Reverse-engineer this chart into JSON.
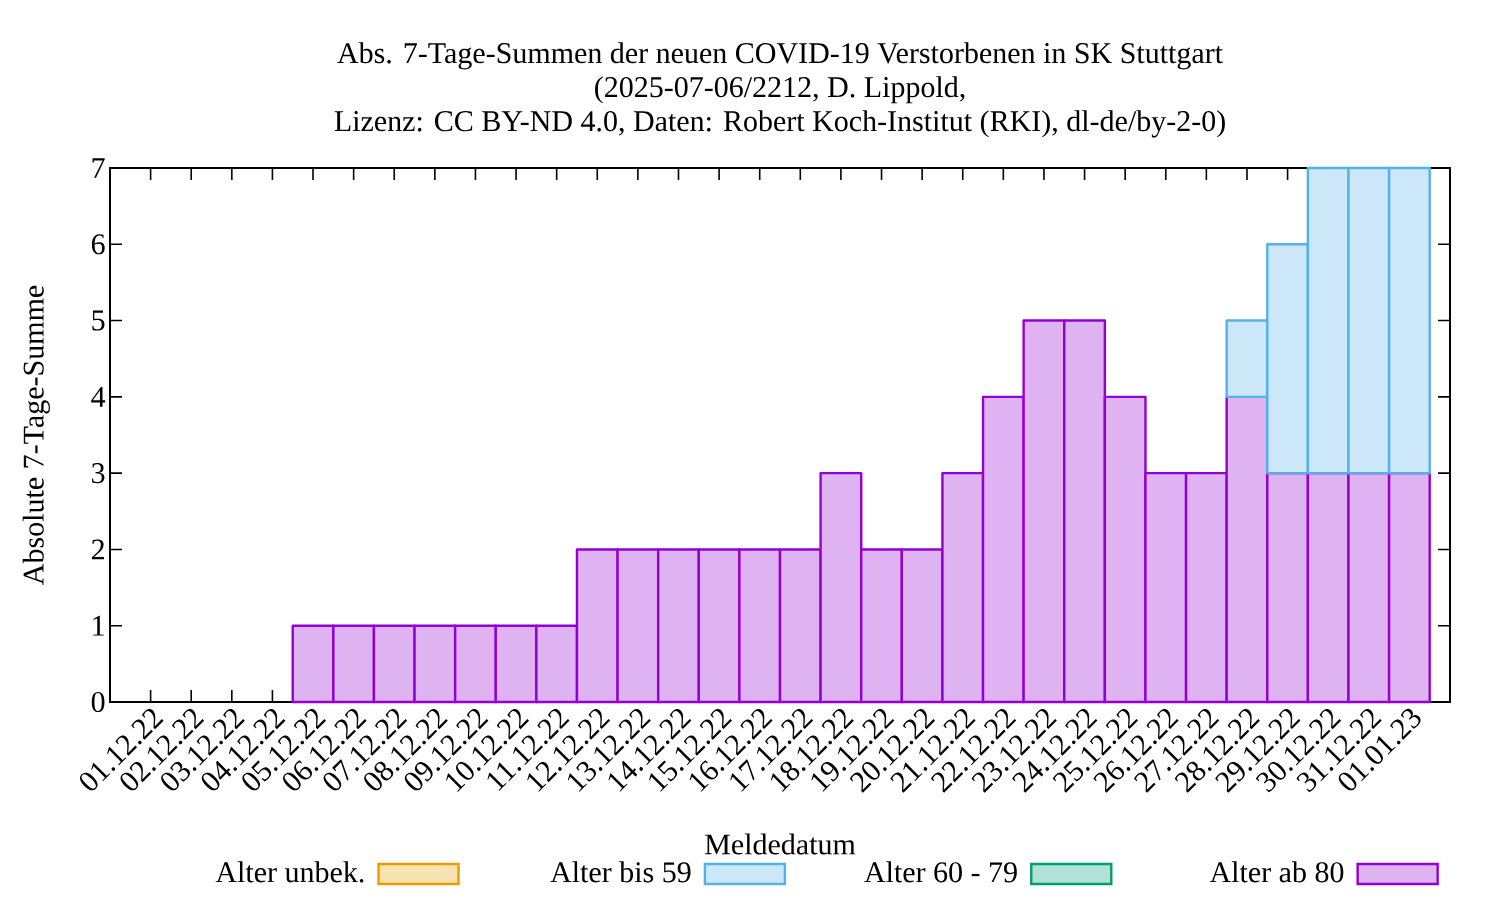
{
  "chart_data": {
    "type": "bar",
    "stacked": true,
    "title": "Abs. 7-Tage-Summen der neuen COVID-19 Verstorbenen in SK Stuttgart",
    "subtitle": "(2025-07-06/2212, D. Lippold,",
    "annotations": [
      "Lizenz: CC BY-ND 4.0, Daten: Robert Koch-Institut (RKI), dl-de/by-2-0)"
    ],
    "xlabel": "Meldedatum",
    "ylabel": "Absolute 7-Tage-Summe",
    "categories": [
      "01.12.22",
      "02.12.22",
      "03.12.22",
      "04.12.22",
      "05.12.22",
      "06.12.22",
      "07.12.22",
      "08.12.22",
      "09.12.22",
      "10.12.22",
      "11.12.22",
      "12.12.22",
      "13.12.22",
      "14.12.22",
      "15.12.22",
      "16.12.22",
      "17.12.22",
      "18.12.22",
      "19.12.22",
      "20.12.22",
      "21.12.22",
      "22.12.22",
      "23.12.22",
      "24.12.22",
      "25.12.22",
      "26.12.22",
      "27.12.22",
      "28.12.22",
      "29.12.22",
      "30.12.22",
      "31.12.22",
      "01.01.23"
    ],
    "series": [
      {
        "name": "Alter ab 80",
        "color": "#dfb2f2",
        "values": [
          0,
          0,
          0,
          0,
          1,
          1,
          1,
          1,
          1,
          1,
          1,
          2,
          2,
          2,
          2,
          2,
          2,
          3,
          2,
          2,
          3,
          4,
          5,
          5,
          4,
          3,
          3,
          4,
          3,
          3,
          3,
          3
        ]
      },
      {
        "name": "Alter 60 - 79",
        "color": "#b2e2d5",
        "values": [
          0,
          0,
          0,
          0,
          0,
          0,
          0,
          0,
          0,
          0,
          0,
          0,
          0,
          0,
          0,
          0,
          0,
          0,
          0,
          0,
          0,
          0,
          0,
          0,
          0,
          0,
          0,
          0,
          0,
          0,
          0,
          0
        ]
      },
      {
        "name": "Alter bis 59",
        "color": "#cce8f8",
        "values": [
          0,
          0,
          0,
          0,
          0,
          0,
          0,
          0,
          0,
          0,
          0,
          0,
          0,
          0,
          0,
          0,
          0,
          0,
          0,
          0,
          0,
          0,
          0,
          0,
          0,
          0,
          0,
          1,
          3,
          4,
          4,
          4
        ]
      },
      {
        "name": "Alter unbek.",
        "color": "#f7e2b2",
        "values": [
          0,
          0,
          0,
          0,
          0,
          0,
          0,
          0,
          0,
          0,
          0,
          0,
          0,
          0,
          0,
          0,
          0,
          0,
          0,
          0,
          0,
          0,
          0,
          0,
          0,
          0,
          0,
          0,
          0,
          0,
          0,
          0
        ]
      }
    ],
    "ylim": [
      0,
      7
    ],
    "yticks": [
      0,
      1,
      2,
      3,
      4,
      5,
      6,
      7
    ],
    "legend": "bottom",
    "grid": false
  }
}
